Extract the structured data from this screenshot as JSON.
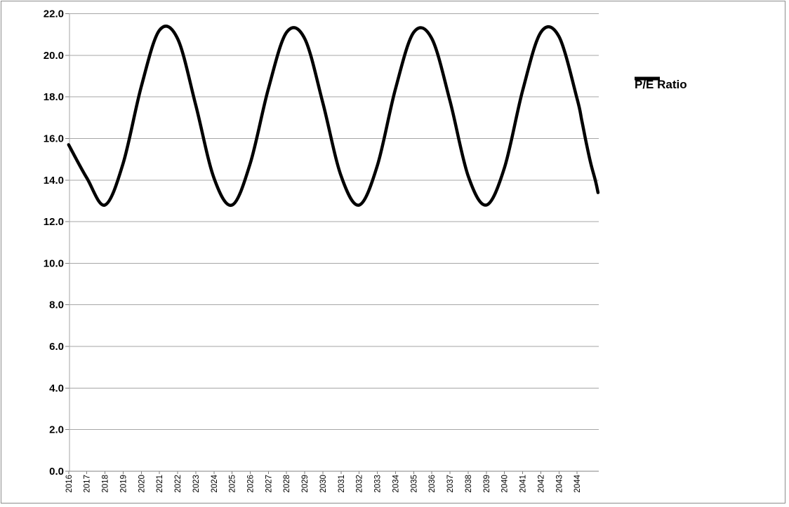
{
  "window": {
    "background": "#FFFFFF",
    "border_color": "#8C8C8C"
  },
  "legend": {
    "label": "P/E Ratio",
    "swatch_color": "#000000"
  },
  "chart_data": {
    "type": "line",
    "title": "",
    "xlabel": "",
    "ylabel": "",
    "categories": [
      "2016",
      "2017",
      "2018",
      "2019",
      "2020",
      "2021",
      "2022",
      "2023",
      "2024",
      "2025",
      "2026",
      "2027",
      "2028",
      "2029",
      "2030",
      "2031",
      "2032",
      "2033",
      "2034",
      "2035",
      "2036",
      "2037",
      "2038",
      "2039",
      "2040",
      "2041",
      "2042",
      "2043",
      "2044"
    ],
    "series": [
      {
        "name": "P/E Ratio",
        "color": "#000000",
        "values": [
          15.7,
          14.1,
          12.8,
          14.8,
          18.5,
          21.2,
          20.8,
          17.6,
          14.1,
          12.8,
          14.8,
          18.4,
          21.1,
          20.8,
          17.7,
          14.2,
          12.8,
          14.7,
          18.4,
          21.1,
          20.8,
          17.8,
          14.2,
          12.8,
          14.6,
          18.3,
          21.1,
          20.9,
          17.9
        ],
        "tail_extension_points": [
          [
            2044.25,
            16.9
          ],
          [
            2044.5,
            15.8
          ],
          [
            2044.75,
            14.8
          ],
          [
            2045.0,
            14.0
          ],
          [
            2045.15,
            13.4
          ]
        ]
      }
    ],
    "y_axis": {
      "min": 0,
      "max": 22,
      "step": 2,
      "tick_labels": [
        "22.0",
        "20.0",
        "18.0",
        "16.0",
        "14.0",
        "12.0",
        "10.0",
        "8.0",
        "6.0",
        "4.0",
        "2.0",
        "0.0"
      ]
    },
    "x_axis": {
      "tick_labels": [
        "2016",
        "2017",
        "2018",
        "2019",
        "2020",
        "2021",
        "2022",
        "2023",
        "2024",
        "2025",
        "2026",
        "2027",
        "2028",
        "2029",
        "2030",
        "2031",
        "2032",
        "2033",
        "2034",
        "2035",
        "2036",
        "2037",
        "2038",
        "2039",
        "2040",
        "2041",
        "2042",
        "2043",
        "2044"
      ],
      "label_rotation_deg": 90
    },
    "legend_position": "right",
    "gridlines": true,
    "style": {
      "line_width": 4.5,
      "gridline_color": "#A6A6A6",
      "axis_color": "#808080",
      "text_color": "#000000",
      "y_label_font_px": 15,
      "x_label_font_px": 11.5
    }
  }
}
